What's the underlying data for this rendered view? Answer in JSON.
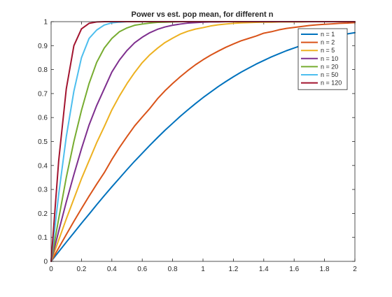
{
  "chart_data": {
    "type": "line",
    "title": "Power vs est. pop mean, for different n",
    "xlabel": "",
    "ylabel": "",
    "xlim": [
      0,
      2
    ],
    "ylim": [
      0,
      1
    ],
    "x_ticks": [
      "0",
      "0.2",
      "0.4",
      "0.6",
      "0.8",
      "1",
      "1.2",
      "1.4",
      "1.6",
      "1.8",
      "2"
    ],
    "y_ticks": [
      "0",
      "0.1",
      "0.2",
      "0.3",
      "0.4",
      "0.5",
      "0.6",
      "0.7",
      "0.8",
      "0.9",
      "1"
    ],
    "grid": false,
    "legend_position": "top-right",
    "x": [
      0,
      0.05,
      0.1,
      0.15,
      0.2,
      0.25,
      0.3,
      0.35,
      0.4,
      0.45,
      0.5,
      0.55,
      0.6,
      0.65,
      0.7,
      0.75,
      0.8,
      0.85,
      0.9,
      0.95,
      1.0,
      1.05,
      1.1,
      1.15,
      1.2,
      1.25,
      1.3,
      1.35,
      1.4,
      1.45,
      1.5,
      1.55,
      1.6,
      1.65,
      1.7,
      1.75,
      1.8,
      1.85,
      1.9,
      1.95,
      2.0
    ],
    "series": [
      {
        "name": "n = 1",
        "color": "#0072BD",
        "values": [
          0,
          0.04,
          0.08,
          0.119,
          0.159,
          0.197,
          0.236,
          0.274,
          0.311,
          0.347,
          0.383,
          0.418,
          0.451,
          0.484,
          0.516,
          0.547,
          0.576,
          0.605,
          0.632,
          0.658,
          0.683,
          0.706,
          0.729,
          0.75,
          0.77,
          0.789,
          0.806,
          0.823,
          0.838,
          0.853,
          0.866,
          0.879,
          0.89,
          0.901,
          0.911,
          0.92,
          0.928,
          0.936,
          0.943,
          0.949,
          0.954
        ]
      },
      {
        "name": "n = 2",
        "color": "#D95319",
        "values": [
          0,
          0.056,
          0.112,
          0.167,
          0.22,
          0.272,
          0.322,
          0.37,
          0.425,
          0.475,
          0.521,
          0.565,
          0.602,
          0.638,
          0.678,
          0.712,
          0.742,
          0.77,
          0.796,
          0.82,
          0.841,
          0.86,
          0.877,
          0.893,
          0.907,
          0.92,
          0.93,
          0.94,
          0.952,
          0.958,
          0.966,
          0.972,
          0.976,
          0.98,
          0.984,
          0.987,
          0.989,
          0.991,
          0.993,
          0.994,
          0.996
        ]
      },
      {
        "name": "n = 5",
        "color": "#EDB120",
        "values": [
          0,
          0.089,
          0.177,
          0.261,
          0.345,
          0.42,
          0.495,
          0.562,
          0.632,
          0.69,
          0.742,
          0.788,
          0.829,
          0.862,
          0.889,
          0.913,
          0.931,
          0.948,
          0.96,
          0.969,
          0.975,
          0.982,
          0.987,
          0.99,
          0.993,
          0.995,
          0.996,
          0.997,
          0.998,
          0.998,
          0.999,
          0.999,
          0.999,
          0.999,
          1,
          1,
          1,
          1,
          1,
          1,
          1
        ]
      },
      {
        "name": "n = 10",
        "color": "#7E2F8E",
        "values": [
          0,
          0.126,
          0.248,
          0.362,
          0.47,
          0.569,
          0.65,
          0.72,
          0.79,
          0.84,
          0.88,
          0.912,
          0.935,
          0.954,
          0.968,
          0.978,
          0.985,
          0.99,
          0.994,
          0.996,
          0.998,
          0.999,
          0.999,
          1,
          1,
          1,
          1,
          1,
          1,
          1,
          1,
          1,
          1,
          1,
          1,
          1,
          1,
          1,
          1,
          1,
          1
        ]
      },
      {
        "name": "n = 20",
        "color": "#77AC30",
        "values": [
          0,
          0.178,
          0.35,
          0.5,
          0.63,
          0.742,
          0.83,
          0.89,
          0.93,
          0.958,
          0.974,
          0.985,
          0.99,
          0.994,
          0.997,
          0.998,
          0.999,
          1,
          1,
          1,
          1,
          1,
          1,
          1,
          1,
          1,
          1,
          1,
          1,
          1,
          1,
          1,
          1,
          1,
          1,
          1,
          1,
          1,
          1,
          1,
          1
        ]
      },
      {
        "name": "n = 50",
        "color": "#4DBEEE",
        "values": [
          0,
          0.28,
          0.52,
          0.71,
          0.85,
          0.93,
          0.965,
          0.986,
          0.995,
          0.998,
          1,
          1,
          1,
          1,
          1,
          1,
          1,
          1,
          1,
          1,
          1,
          1,
          1,
          1,
          1,
          1,
          1,
          1,
          1,
          1,
          1,
          1,
          1,
          1,
          1,
          1,
          1,
          1,
          1,
          1,
          1
        ]
      },
      {
        "name": "n = 120",
        "color": "#A2142F",
        "values": [
          0,
          0.42,
          0.72,
          0.9,
          0.97,
          0.993,
          0.999,
          1,
          1,
          1,
          1,
          1,
          1,
          1,
          1,
          1,
          1,
          1,
          1,
          1,
          1,
          1,
          1,
          1,
          1,
          1,
          1,
          1,
          1,
          1,
          1,
          1,
          1,
          1,
          1,
          1,
          1,
          1,
          1,
          1,
          1
        ]
      }
    ]
  }
}
